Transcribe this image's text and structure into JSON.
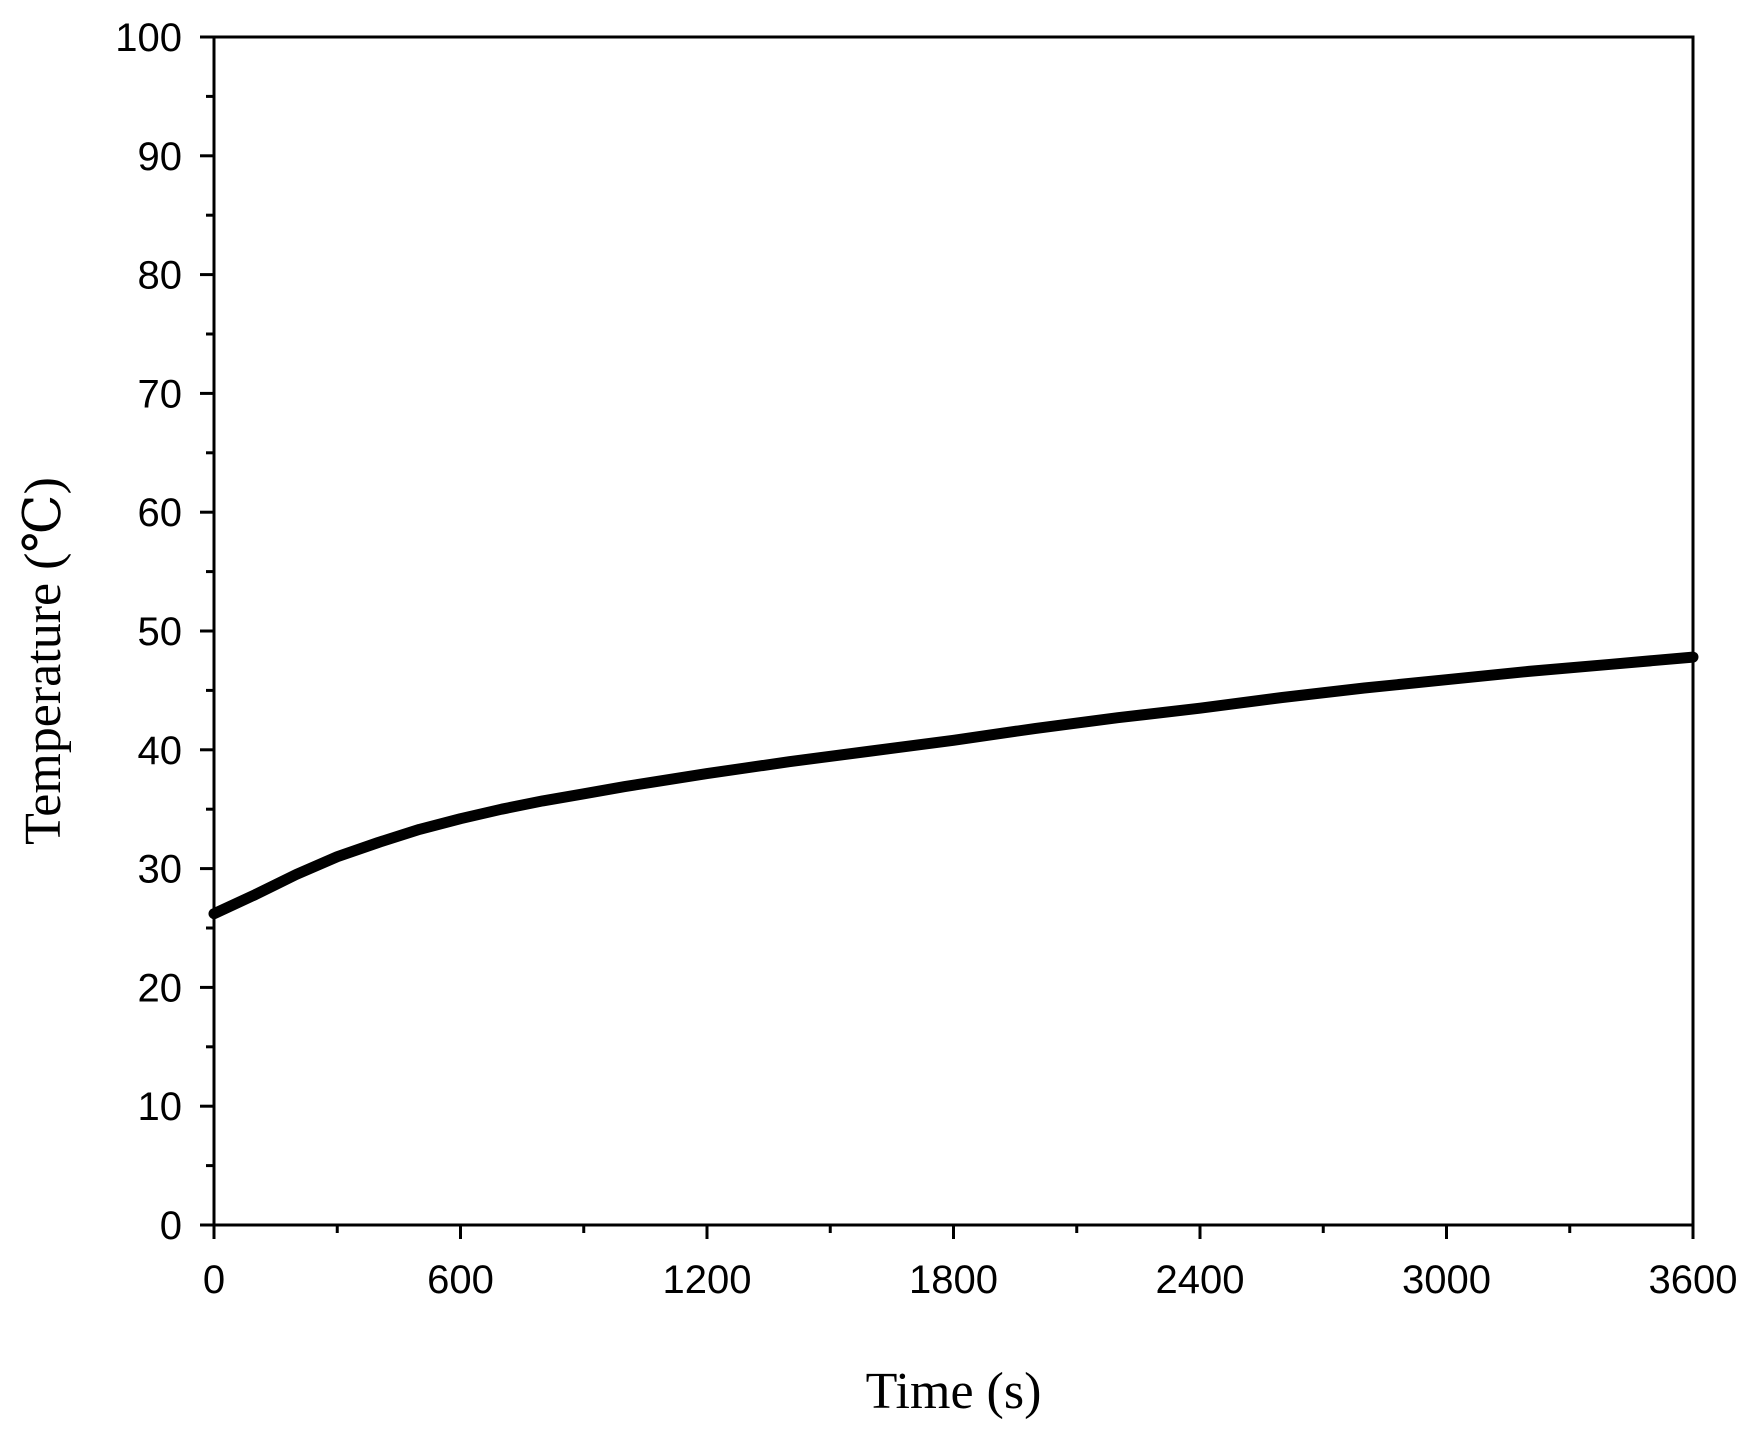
{
  "chart_data": {
    "type": "line",
    "title": "",
    "xlabel": "Time (s)",
    "ylabel": "Temperature (℃)",
    "xlim": [
      0,
      3600
    ],
    "ylim": [
      0,
      100
    ],
    "x_ticks": [
      0,
      600,
      1200,
      1800,
      2400,
      3000,
      3600
    ],
    "x_tick_labels": [
      "0",
      "600",
      "1200",
      "1800",
      "2400",
      "3000",
      "3600"
    ],
    "y_ticks": [
      0,
      10,
      20,
      30,
      40,
      50,
      60,
      70,
      80,
      90,
      100
    ],
    "y_tick_labels": [
      "0",
      "10",
      "20",
      "30",
      "40",
      "50",
      "60",
      "70",
      "80",
      "90",
      "100"
    ],
    "grid": false,
    "legend": "none",
    "line_color": "#000000",
    "series": [
      {
        "x": [
          0,
          100,
          200,
          300,
          400,
          500,
          600,
          700,
          800,
          900,
          1000,
          1200,
          1400,
          1600,
          1800,
          2000,
          2200,
          2400,
          2600,
          2800,
          3000,
          3200,
          3400,
          3600
        ],
        "y": [
          26.2,
          27.8,
          29.5,
          31.0,
          32.2,
          33.3,
          34.2,
          35.0,
          35.7,
          36.3,
          36.9,
          38.0,
          39.0,
          39.9,
          40.8,
          41.8,
          42.7,
          43.5,
          44.4,
          45.2,
          45.9,
          46.6,
          47.2,
          47.8
        ]
      }
    ]
  }
}
